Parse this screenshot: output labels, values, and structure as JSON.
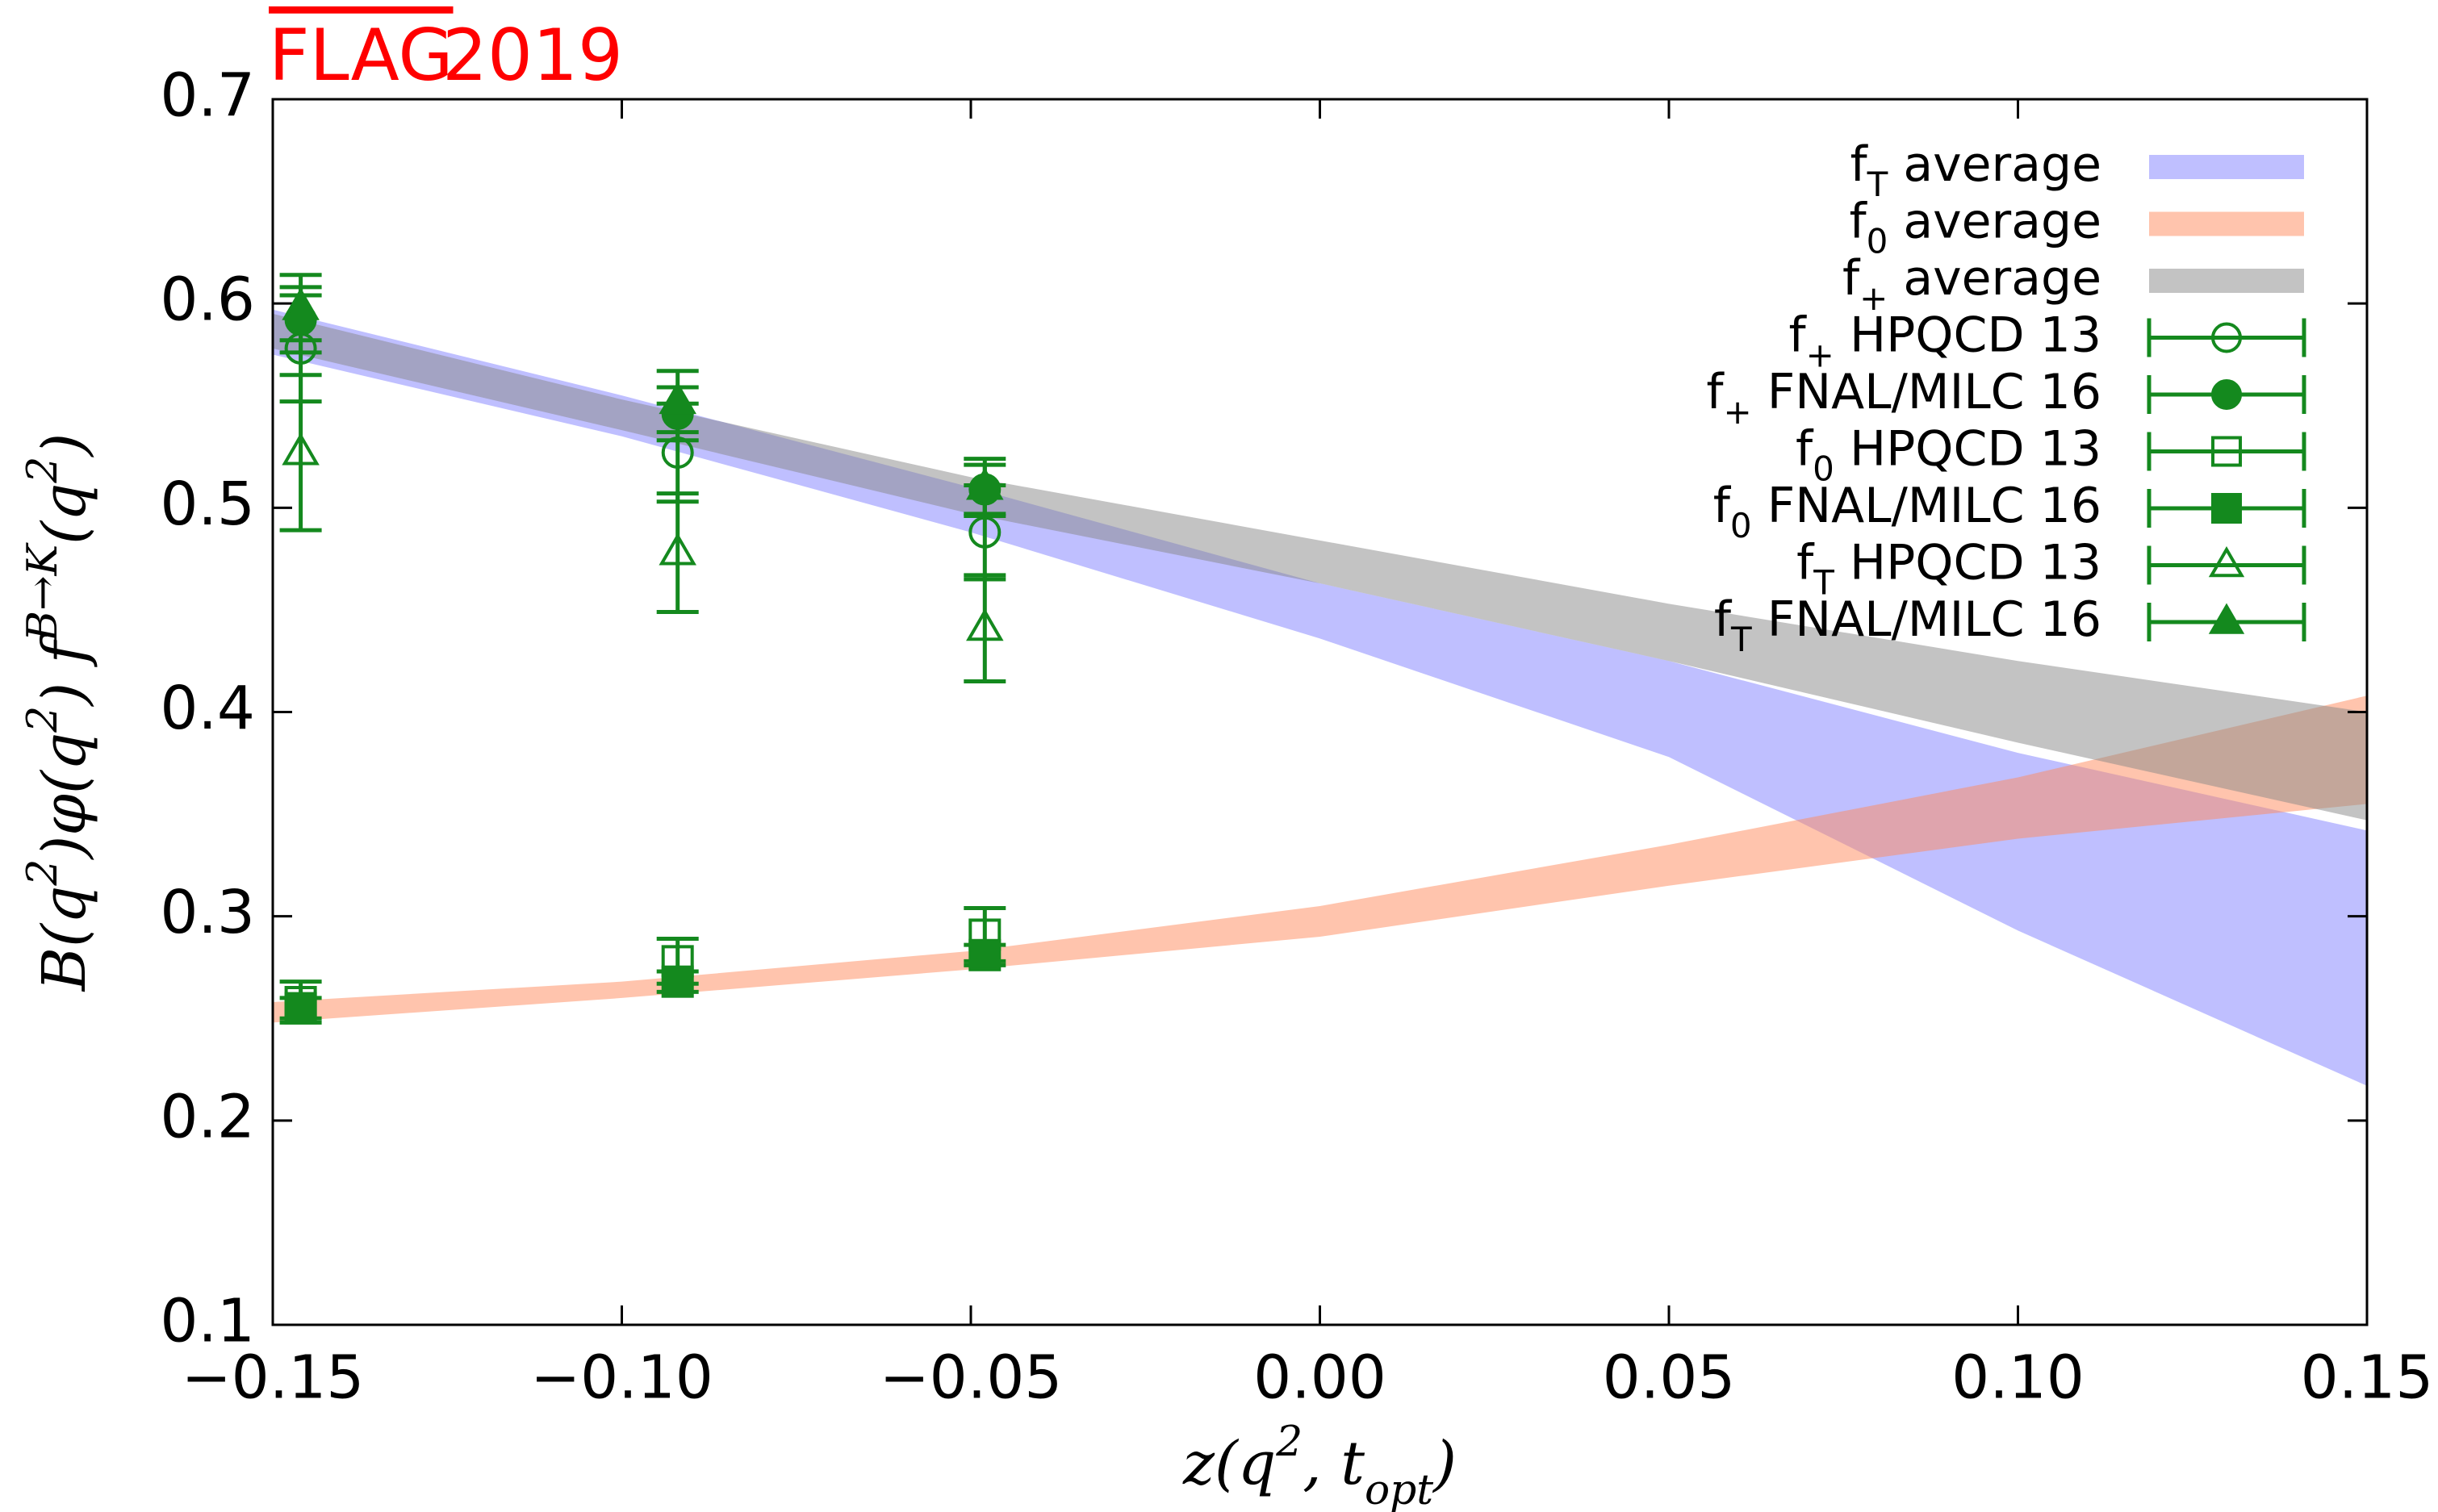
{
  "chart_data": {
    "type": "errorbar",
    "title": "FLAG",
    "subtitle": "2019",
    "xlabel": "z(q^{2}, t_{opt})",
    "ylabel": "B(q^{2})φ(q^{2}) f^{B→K}(q^{2})",
    "xlim": [
      -0.15,
      0.15
    ],
    "ylim": [
      0.1,
      0.7
    ],
    "xticks": [
      {
        "value": -0.15,
        "label": "−0.15"
      },
      {
        "value": -0.1,
        "label": "−0.10"
      },
      {
        "value": -0.05,
        "label": "−0.05"
      },
      {
        "value": 0,
        "label": "0.00"
      },
      {
        "value": 0.05,
        "label": "0.05"
      },
      {
        "value": 0.1,
        "label": "0.10"
      },
      {
        "value": 0.15,
        "label": "0.15"
      }
    ],
    "yticks": [
      0.1,
      0.2,
      0.3,
      0.4,
      0.5,
      0.6,
      0.7
    ],
    "band_opacity": 0.5,
    "bands": [
      {
        "name": "f_{T} average",
        "color": "#8080ff",
        "x": [
          -0.15,
          -0.1,
          -0.05,
          0,
          0.05,
          0.1,
          0.15
        ],
        "lower": [
          0.575,
          0.535,
          0.488,
          0.436,
          0.378,
          0.293,
          0.217
        ],
        "upper": [
          0.597,
          0.555,
          0.51,
          0.463,
          0.425,
          0.38,
          0.342
        ]
      },
      {
        "name": "f_{0} average",
        "color": "#ff8a5c",
        "x": [
          -0.15,
          -0.1,
          -0.05,
          0,
          0.05,
          0.1,
          0.15
        ],
        "lower": [
          0.248,
          0.26,
          0.274,
          0.29,
          0.315,
          0.338,
          0.355
        ],
        "upper": [
          0.258,
          0.268,
          0.283,
          0.305,
          0.335,
          0.368,
          0.408
        ]
      },
      {
        "name": "f_{+} average",
        "color": "#888888",
        "x": [
          -0.15,
          -0.1,
          -0.05,
          0,
          0.05,
          0.1,
          0.15
        ],
        "lower": [
          0.578,
          0.538,
          0.497,
          0.463,
          0.425,
          0.385,
          0.347
        ],
        "upper": [
          0.595,
          0.553,
          0.515,
          0.484,
          0.453,
          0.425,
          0.4
        ]
      }
    ],
    "series": [
      {
        "name": "f_{+} HPQCD 13",
        "marker": "circle",
        "filled": false,
        "color": "#14891e",
        "x": [
          -0.146,
          -0.092,
          -0.048
        ],
        "values": [
          0.578,
          0.527,
          0.488
        ],
        "errors": [
          0.026,
          0.024,
          0.023
        ]
      },
      {
        "name": "f_{+} FNAL/MILC 16",
        "marker": "circle",
        "filled": true,
        "color": "#14891e",
        "x": [
          -0.146,
          -0.092,
          -0.048
        ],
        "values": [
          0.592,
          0.546,
          0.509
        ],
        "errors": [
          0.016,
          0.013,
          0.012
        ]
      },
      {
        "name": "f_{0} HPQCD 13",
        "marker": "square",
        "filled": false,
        "color": "#14891e",
        "x": [
          -0.146,
          -0.092,
          -0.048
        ],
        "values": [
          0.258,
          0.278,
          0.291
        ],
        "errors": [
          0.01,
          0.011,
          0.013
        ]
      },
      {
        "name": "f_{0} FNAL/MILC 16",
        "marker": "square",
        "filled": true,
        "color": "#14891e",
        "x": [
          -0.146,
          -0.092,
          -0.048
        ],
        "values": [
          0.255,
          0.268,
          0.281
        ],
        "errors": [
          0.005,
          0.005,
          0.005
        ]
      },
      {
        "name": "f_{T} HPQCD 13",
        "marker": "triangle",
        "filled": false,
        "color": "#14891e",
        "x": [
          -0.146,
          -0.092,
          -0.048
        ],
        "values": [
          0.527,
          0.478,
          0.441
        ],
        "errors": [
          0.038,
          0.029,
          0.026
        ]
      },
      {
        "name": "f_{T} FNAL/MILC 16",
        "marker": "triangle",
        "filled": true,
        "color": "#14891e",
        "x": [
          -0.146,
          -0.092,
          -0.048
        ],
        "values": [
          0.598,
          0.552,
          0.51
        ],
        "errors": [
          0.016,
          0.015,
          0.014
        ]
      }
    ]
  }
}
